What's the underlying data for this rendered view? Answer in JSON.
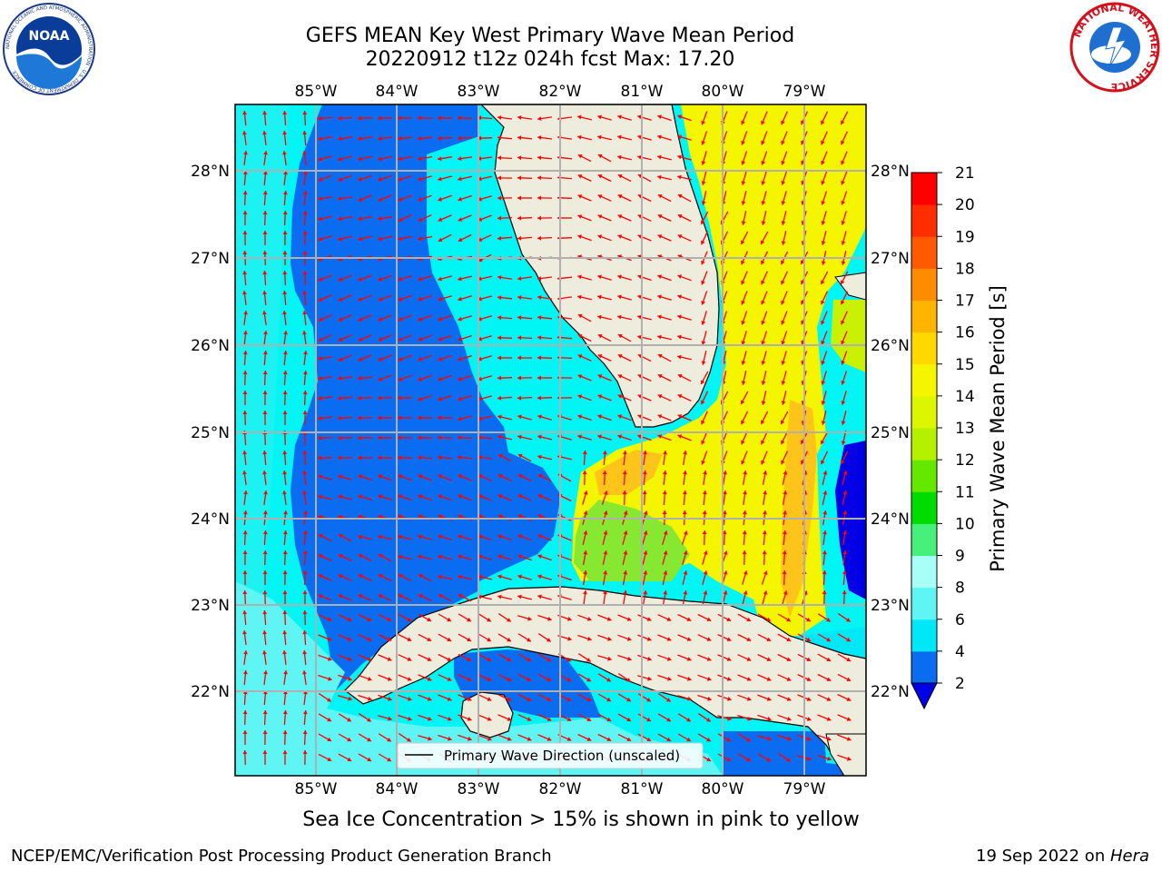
{
  "header": {
    "title_line1": "GEFS MEAN Key West Primary Wave Mean Period",
    "title_line2": "20220912 t12z 024h fcst   Max: 17.20"
  },
  "map": {
    "lon_labels": [
      "85°W",
      "84°W",
      "83°W",
      "82°W",
      "81°W",
      "80°W",
      "79°W"
    ],
    "lat_labels": [
      "28°N",
      "27°N",
      "26°N",
      "25°N",
      "24°N",
      "23°N",
      "22°N"
    ],
    "legend_label": "Primary Wave Direction (unscaled)",
    "colors": {
      "land": "#eeecdc",
      "grid": "#b0b0b0",
      "arrow": "#ff0000",
      "deep_blue": "#0a6cf0",
      "cyan": "#00f5f5",
      "light_cyan": "#5ff5f5",
      "yellow": "#f5f500",
      "green": "#7fe830",
      "orange": "#ffb400"
    }
  },
  "colorbar": {
    "label": "Primary Wave Mean Period [s]",
    "ticks": [
      "2",
      "4",
      "6",
      "8",
      "9",
      "10",
      "11",
      "12",
      "13",
      "14",
      "15",
      "16",
      "17",
      "18",
      "19",
      "20",
      "21"
    ],
    "colors": [
      "#0a6cf0",
      "#00e8f8",
      "#5ff5f5",
      "#a8fff8",
      "#46f07a",
      "#00dc00",
      "#64e800",
      "#b4f000",
      "#dcf500",
      "#f5f500",
      "#ffd800",
      "#ffb400",
      "#ff8c00",
      "#ff5a00",
      "#ff2d00",
      "#ff0000"
    ],
    "under_color": "#0000e6"
  },
  "footer": {
    "note": "Sea Ice Concentration > 15% is shown in pink to yellow",
    "credit_left": "NCEP/EMC/Verification Post Processing Product Generation Branch",
    "credit_right_date": "19 Sep 2022 on ",
    "credit_right_host": "Hera"
  },
  "logos": {
    "noaa_text": "NOAA",
    "noaa_ring": "NATIONAL OCEANIC AND ATMOSPHERIC ADMINISTRATION · U.S. DEPARTMENT OF COMMERCE",
    "nws_ring": "NATIONAL WEATHER SERVICE"
  }
}
